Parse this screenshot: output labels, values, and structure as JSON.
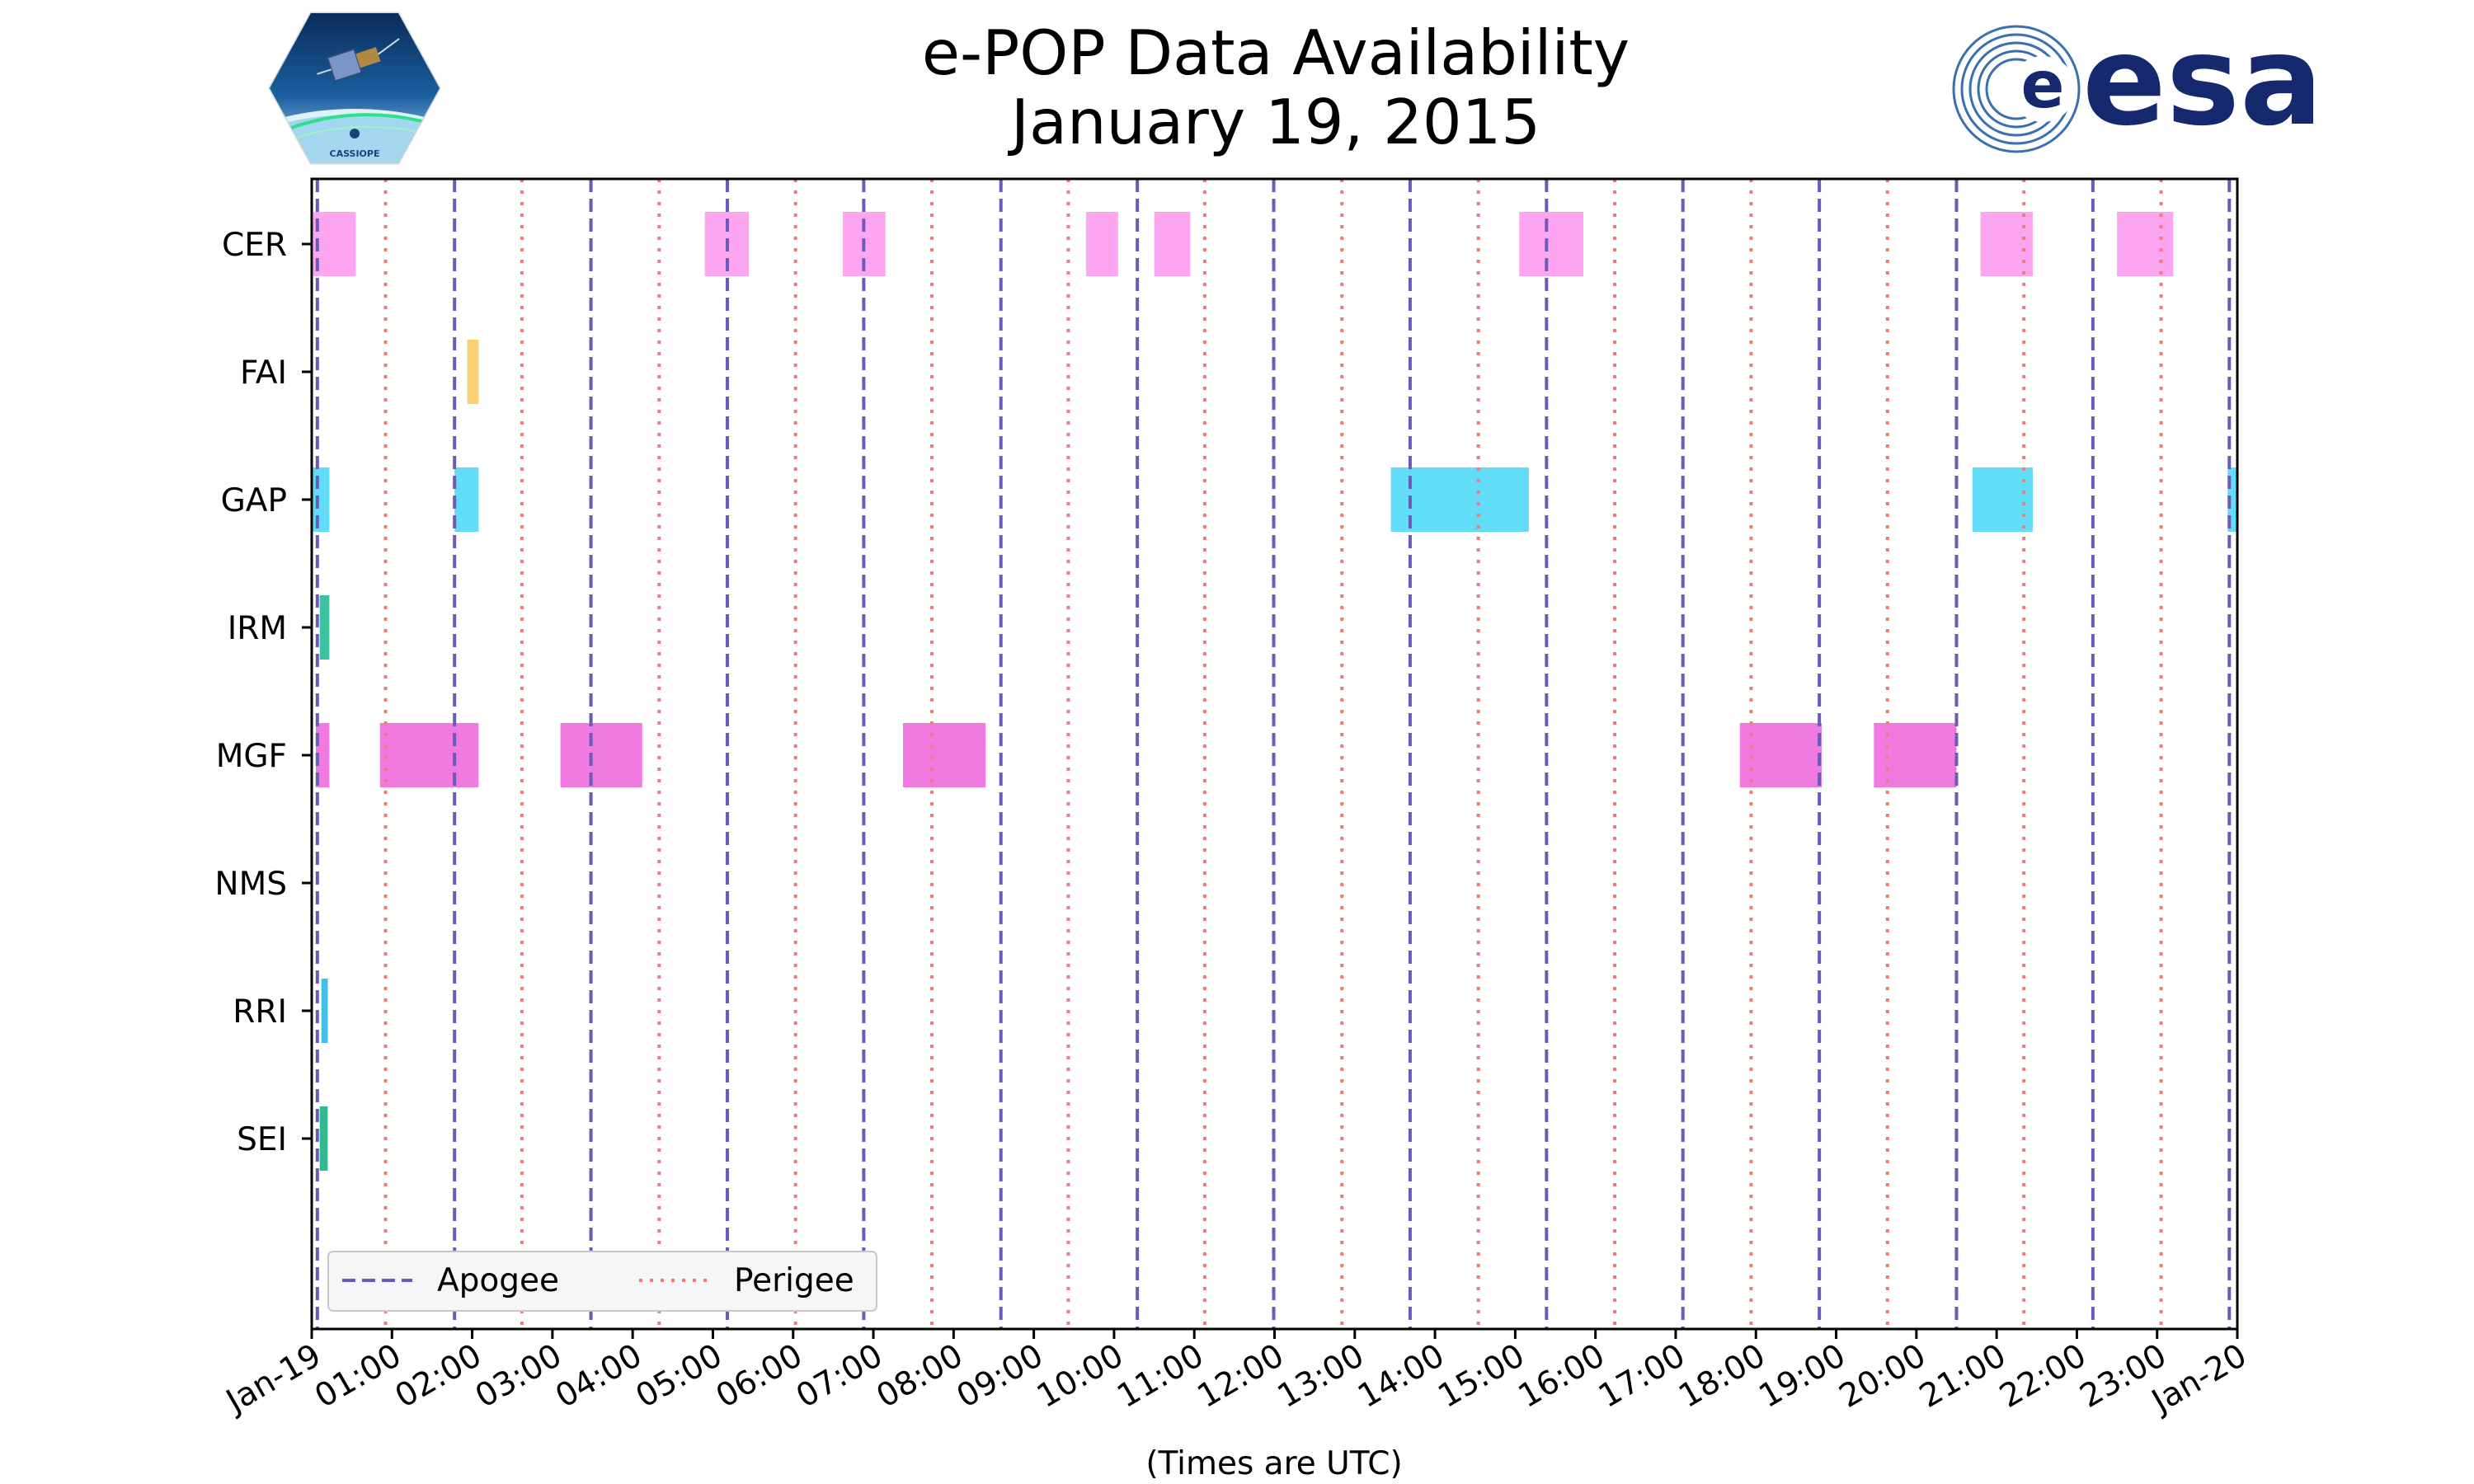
{
  "chart_data": {
    "type": "timeline",
    "title": [
      "e-POP Data Availability",
      "January 19, 2015"
    ],
    "xlabel": "(Times are UTC)",
    "xlim": [
      0,
      24
    ],
    "x_tick_labels": [
      "Jan-19",
      "01:00",
      "02:00",
      "03:00",
      "04:00",
      "05:00",
      "06:00",
      "07:00",
      "08:00",
      "09:00",
      "10:00",
      "11:00",
      "12:00",
      "13:00",
      "14:00",
      "15:00",
      "16:00",
      "17:00",
      "18:00",
      "19:00",
      "20:00",
      "21:00",
      "22:00",
      "23:00",
      "Jan-20"
    ],
    "instruments": [
      "CER",
      "FAI",
      "GAP",
      "IRM",
      "MGF",
      "NMS",
      "RRI",
      "SEI"
    ],
    "colors": {
      "CER": "#fca6f2",
      "FAI": "#fcd06e",
      "GAP": "#62ddf7",
      "IRM": "#3fc09e",
      "MGF": "#f07ae0",
      "NMS": "#9aa0ff",
      "RRI": "#42c0e8",
      "SEI": "#36b88e",
      "apogee": "#6a5aba",
      "perigee": "#f07a7a"
    },
    "intervals": {
      "CER": [
        [
          0.02,
          0.55
        ],
        [
          4.9,
          5.45
        ],
        [
          6.62,
          7.15
        ],
        [
          9.65,
          10.05
        ],
        [
          10.5,
          10.95
        ],
        [
          15.05,
          15.85
        ],
        [
          20.8,
          21.45
        ],
        [
          22.5,
          23.2
        ]
      ],
      "FAI": [
        [
          1.94,
          2.08
        ]
      ],
      "GAP": [
        [
          0.0,
          0.22
        ],
        [
          1.78,
          2.08
        ],
        [
          13.45,
          15.17
        ],
        [
          20.7,
          21.45
        ],
        [
          23.88,
          24.0
        ]
      ],
      "IRM": [
        [
          0.1,
          0.22
        ]
      ],
      "MGF": [
        [
          0.05,
          0.22
        ],
        [
          0.85,
          2.08
        ],
        [
          3.1,
          4.12
        ],
        [
          7.37,
          8.4
        ],
        [
          17.8,
          18.82
        ],
        [
          19.47,
          20.5
        ]
      ],
      "NMS": [],
      "RRI": [
        [
          0.12,
          0.2
        ]
      ],
      "SEI": [
        [
          0.1,
          0.2
        ]
      ]
    },
    "apogee_times": [
      0.07,
      1.78,
      3.48,
      5.18,
      6.88,
      8.59,
      10.29,
      11.99,
      13.69,
      15.39,
      17.09,
      18.79,
      20.5,
      22.2,
      23.9
    ],
    "perigee_times": [
      0.92,
      2.62,
      4.33,
      6.03,
      7.73,
      9.43,
      11.13,
      12.84,
      14.54,
      16.24,
      17.94,
      19.64,
      21.34,
      23.05
    ],
    "legend": {
      "position": "lower-left",
      "entries": [
        {
          "label": "Apogee",
          "style": "dashed"
        },
        {
          "label": "Perigee",
          "style": "dotted"
        }
      ]
    }
  },
  "logos": {
    "left": {
      "name": "CASSIOPE mission patch",
      "text": "CASSIOPE"
    },
    "right": {
      "name": "ESA logo",
      "text": "esa"
    }
  }
}
